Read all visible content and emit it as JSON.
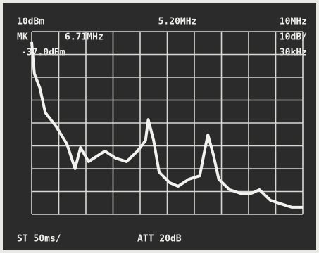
{
  "chart_data": {
    "type": "line",
    "annotations": {
      "reference_level": "10dBm",
      "center": "5.20MHz",
      "span": "10MHz",
      "marker_label": "MK",
      "marker_freq": "6.71MHz",
      "marker_level": "-37.0dBm",
      "scale": "10dB/",
      "rbw": "30kHz",
      "sweep": "ST 50ms/",
      "attenuation": "ATT 20dB"
    },
    "series": [
      {
        "color": "#f2f2ee",
        "x": [
          0.2,
          0.3,
          0.5,
          0.7,
          1.1,
          1.5,
          1.8,
          2.0,
          2.3,
          2.7,
          2.9,
          3.3,
          3.7,
          4.1,
          4.4,
          4.5,
          4.7,
          4.9,
          5.3,
          5.6,
          6.0,
          6.4,
          6.6,
          6.7,
          6.9,
          7.1,
          7.5,
          7.9,
          8.3,
          8.6,
          9.0,
          9.4,
          9.8,
          10.2
        ],
        "values": [
          5.4,
          -8.5,
          -14.6,
          -25.4,
          -31.5,
          -39.2,
          -50,
          -40.8,
          -46.9,
          -43.8,
          -42.3,
          -45.4,
          -46.9,
          -42.3,
          -37.7,
          -28.5,
          -37.7,
          -51.5,
          -56.2,
          -57.7,
          -54.6,
          -53.1,
          -40.8,
          -35.2,
          -43.8,
          -54.6,
          -59.2,
          -60.8,
          -60.8,
          -59.2,
          -63.8,
          -65.4,
          -66.9,
          -66.9
        ]
      }
    ],
    "xlim": [
      0.2,
      10.2
    ],
    "ylim": [
      -70,
      10
    ],
    "xticks": [
      0.2,
      1.2,
      2.2,
      3.2,
      4.2,
      5.2,
      6.2,
      7.2,
      8.2,
      9.2,
      10.2
    ],
    "yticks": [
      -70,
      -60,
      -50,
      -40,
      -30,
      -20,
      -10,
      0,
      10
    ],
    "grid": true
  }
}
